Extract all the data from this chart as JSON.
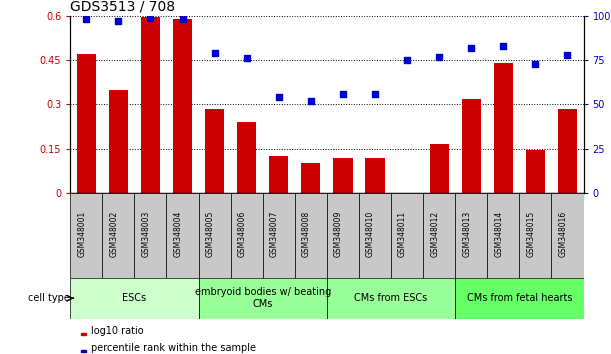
{
  "title": "GDS3513 / 708",
  "samples": [
    "GSM348001",
    "GSM348002",
    "GSM348003",
    "GSM348004",
    "GSM348005",
    "GSM348006",
    "GSM348007",
    "GSM348008",
    "GSM348009",
    "GSM348010",
    "GSM348011",
    "GSM348012",
    "GSM348013",
    "GSM348014",
    "GSM348015",
    "GSM348016"
  ],
  "log10_ratio": [
    0.47,
    0.35,
    0.595,
    0.59,
    0.285,
    0.24,
    0.125,
    0.1,
    0.12,
    0.12,
    0.0,
    0.165,
    0.32,
    0.44,
    0.145,
    0.285
  ],
  "percentile_rank": [
    98,
    97,
    99,
    98,
    79,
    76,
    54,
    52,
    56,
    56,
    75,
    77,
    82,
    83,
    73,
    78
  ],
  "bar_color": "#cc0000",
  "dot_color": "#0000cc",
  "left_yticks": [
    0,
    0.15,
    0.3,
    0.45,
    0.6
  ],
  "left_yticklabels": [
    "0",
    "0.15",
    "0.3",
    "0.45",
    "0.6"
  ],
  "left_ylim": [
    0,
    0.6
  ],
  "right_ylim": [
    0,
    100
  ],
  "right_yticks": [
    0,
    25,
    50,
    75,
    100
  ],
  "right_yticklabels": [
    "0",
    "25",
    "50",
    "75",
    "100%"
  ],
  "groups": [
    {
      "label": "ESCs",
      "start": 0,
      "end": 3,
      "color": "#ccffcc"
    },
    {
      "label": "embryoid bodies w/ beating\nCMs",
      "start": 4,
      "end": 7,
      "color": "#99ff99"
    },
    {
      "label": "CMs from ESCs",
      "start": 8,
      "end": 11,
      "color": "#99ff99"
    },
    {
      "label": "CMs from fetal hearts",
      "start": 12,
      "end": 15,
      "color": "#66ff66"
    }
  ],
  "cell_type_label": "cell type",
  "legend_bar_label": "log10 ratio",
  "legend_dot_label": "percentile rank within the sample",
  "background_color": "#ffffff",
  "title_fontsize": 10,
  "tick_fontsize": 7,
  "sample_fontsize": 5.5,
  "group_fontsize": 7,
  "legend_fontsize": 7,
  "bar_width": 0.6,
  "sample_box_color": "#c8c8c8",
  "dot_size": 15
}
